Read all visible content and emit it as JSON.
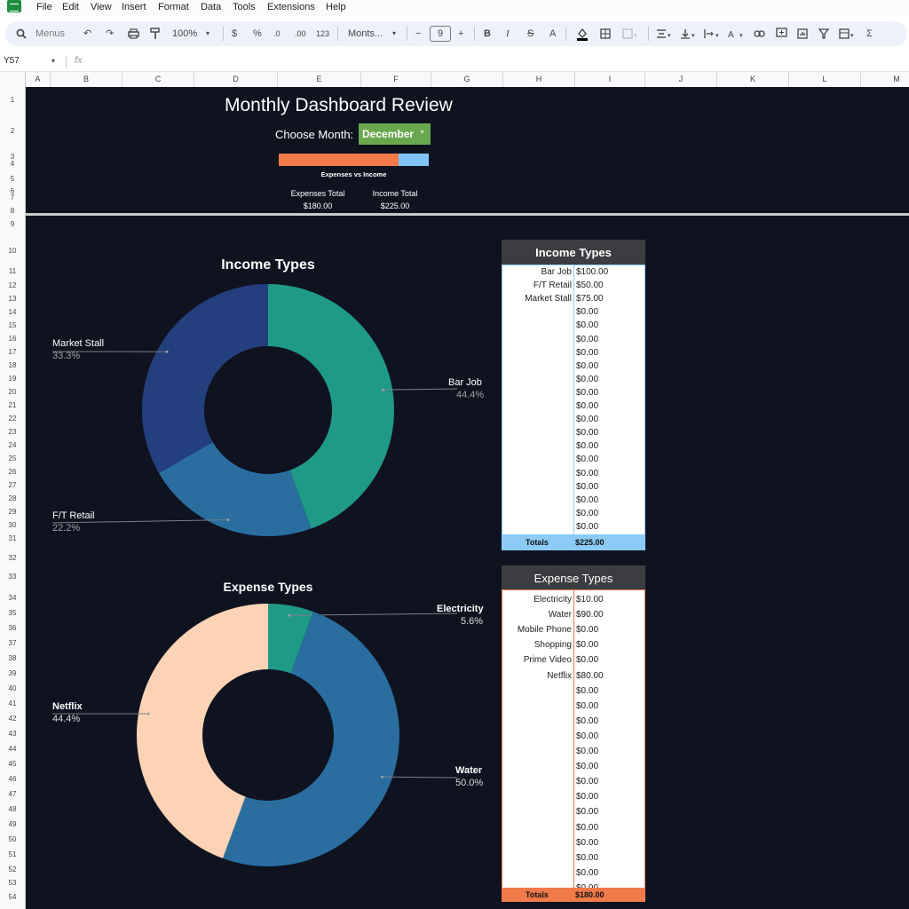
{
  "menu": [
    "File",
    "Edit",
    "View",
    "Insert",
    "Format",
    "Data",
    "Tools",
    "Extensions",
    "Help"
  ],
  "toolbar": {
    "search_placeholder": "Menus",
    "zoom": "100%",
    "currency": "$",
    "percent": "%",
    "dec_decrease": ".0",
    "dec_increase": ".00",
    "number_format": "123",
    "font": "Monts...",
    "font_size": "9",
    "bold": "B",
    "italic": "I",
    "strike": "S",
    "text_color": "A"
  },
  "formula_bar": {
    "cell_ref": "Y57",
    "fx": "fx"
  },
  "columns": [
    "A",
    "B",
    "C",
    "D",
    "E",
    "F",
    "G",
    "H",
    "I",
    "J",
    "K",
    "L",
    "M"
  ],
  "rows": [
    "1",
    "2",
    "3",
    "4",
    "5",
    "6",
    "7",
    "8",
    "9",
    "10",
    "11",
    "12",
    "13",
    "14",
    "15",
    "16",
    "17",
    "18",
    "19",
    "20",
    "21",
    "22",
    "23",
    "24",
    "25",
    "26",
    "27",
    "28",
    "29",
    "30",
    "31",
    "32",
    "33",
    "34",
    "35",
    "36",
    "37",
    "38",
    "39",
    "40",
    "41",
    "42",
    "43",
    "44",
    "45",
    "46",
    "47",
    "48",
    "49",
    "50",
    "51",
    "52",
    "53",
    "54"
  ],
  "dashboard": {
    "title": "Monthly Dashboard Review",
    "choose_label": "Choose Month:",
    "month": "December",
    "bar_caption": "Expenses vs Income",
    "expense_fraction": 0.8,
    "expenses_label": "Expenses Total",
    "expenses_value": "$180.00",
    "income_label": "Income Total",
    "income_value": "$225.00"
  },
  "colors": {
    "background": "#0f1320",
    "income_accent": "#8ccbf5",
    "expense_accent": "#f07a4a",
    "month_green": "#6aa84f"
  },
  "chart_data": [
    {
      "type": "pie",
      "title": "Income Types",
      "slices": [
        {
          "label": "Bar Job",
          "value": 44.4,
          "pct": "44.4%",
          "color": "#1f9a87"
        },
        {
          "label": "F/T Retail",
          "value": 22.2,
          "pct": "22.2%",
          "color": "#2a6ea0"
        },
        {
          "label": "Market Stall",
          "value": 33.3,
          "pct": "33.3%",
          "color": "#233f7d"
        }
      ]
    },
    {
      "type": "pie",
      "title": "Expense Types",
      "slices": [
        {
          "label": "Electricity",
          "value": 5.6,
          "pct": "5.6%",
          "color": "#1f9a87"
        },
        {
          "label": "Water",
          "value": 50.0,
          "pct": "50.0%",
          "color": "#2a6ea0"
        },
        {
          "label": "Netflix",
          "value": 44.4,
          "pct": "44.4%",
          "color": "#fdd3b5"
        }
      ]
    }
  ],
  "income_table": {
    "title": "Income Types",
    "rows": [
      {
        "name": "Bar Job",
        "value": "$100.00"
      },
      {
        "name": "F/T Retail",
        "value": "$50.00"
      },
      {
        "name": "Market Stall",
        "value": "$75.00"
      },
      {
        "name": "",
        "value": "$0.00"
      },
      {
        "name": "",
        "value": "$0.00"
      },
      {
        "name": "",
        "value": "$0.00"
      },
      {
        "name": "",
        "value": "$0.00"
      },
      {
        "name": "",
        "value": "$0.00"
      },
      {
        "name": "",
        "value": "$0.00"
      },
      {
        "name": "",
        "value": "$0.00"
      },
      {
        "name": "",
        "value": "$0.00"
      },
      {
        "name": "",
        "value": "$0.00"
      },
      {
        "name": "",
        "value": "$0.00"
      },
      {
        "name": "",
        "value": "$0.00"
      },
      {
        "name": "",
        "value": "$0.00"
      },
      {
        "name": "",
        "value": "$0.00"
      },
      {
        "name": "",
        "value": "$0.00"
      },
      {
        "name": "",
        "value": "$0.00"
      },
      {
        "name": "",
        "value": "$0.00"
      },
      {
        "name": "",
        "value": "$0.00"
      }
    ],
    "totals_label": "Totals",
    "totals_value": "$225.00"
  },
  "expense_table": {
    "title": "Expense Types",
    "rows": [
      {
        "name": "Electricity",
        "value": "$10.00"
      },
      {
        "name": "Water",
        "value": "$90.00"
      },
      {
        "name": "Mobile Phone",
        "value": "$0.00"
      },
      {
        "name": "Shopping",
        "value": "$0.00"
      },
      {
        "name": "Prime Video",
        "value": "$0.00"
      },
      {
        "name": "Netflix",
        "value": "$80.00"
      },
      {
        "name": "",
        "value": "$0.00"
      },
      {
        "name": "",
        "value": "$0.00"
      },
      {
        "name": "",
        "value": "$0.00"
      },
      {
        "name": "",
        "value": "$0.00"
      },
      {
        "name": "",
        "value": "$0.00"
      },
      {
        "name": "",
        "value": "$0.00"
      },
      {
        "name": "",
        "value": "$0.00"
      },
      {
        "name": "",
        "value": "$0.00"
      },
      {
        "name": "",
        "value": "$0.00"
      },
      {
        "name": "",
        "value": "$0.00"
      },
      {
        "name": "",
        "value": "$0.00"
      },
      {
        "name": "",
        "value": "$0.00"
      },
      {
        "name": "",
        "value": "$0.00"
      },
      {
        "name": "",
        "value": "$0.00"
      }
    ],
    "totals_label": "Totals",
    "totals_value": "$180.00"
  }
}
